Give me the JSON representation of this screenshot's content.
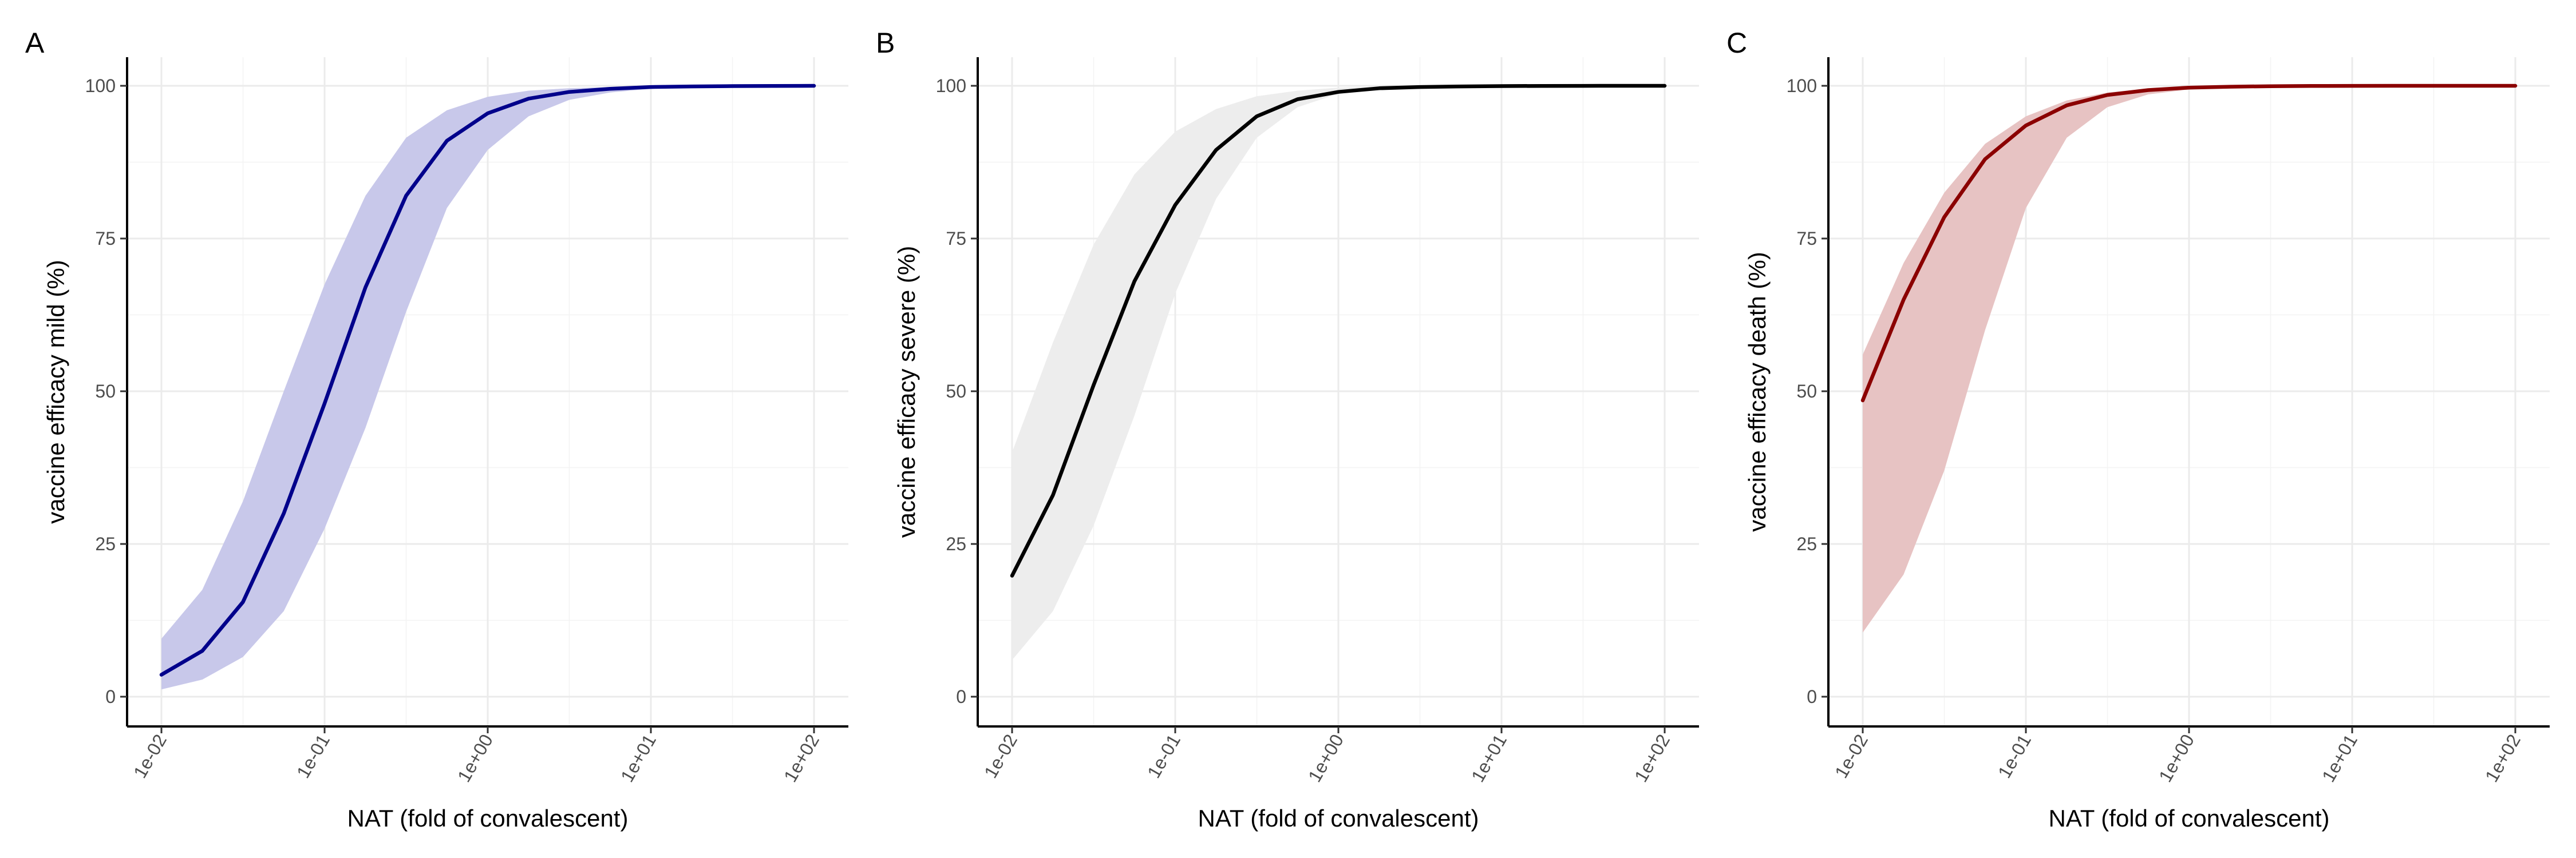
{
  "chart_data": [
    {
      "type": "line",
      "tag": "A",
      "xlabel": "NAT (fold of convalescent)",
      "ylabel": "vaccine efficacy mild (%)",
      "x_scale": "log10",
      "xlim": [
        0.01,
        100
      ],
      "ylim": [
        0,
        100
      ],
      "x_ticks": [
        "1e-02",
        "1e-01",
        "1e+00",
        "1e+01",
        "1e+02"
      ],
      "y_ticks": [
        "0",
        "25",
        "50",
        "75",
        "100"
      ],
      "grid": true,
      "line_color": "#00008b",
      "band_color": "#c8c8ea",
      "series": [
        {
          "x": [
            0.01,
            0.0178,
            0.0316,
            0.0562,
            0.1,
            0.178,
            0.316,
            0.562,
            1,
            1.78,
            3.16,
            5.62,
            10,
            17.8,
            31.6,
            56.2,
            100
          ],
          "y": [
            3.6,
            7.5,
            15.5,
            30,
            48,
            67,
            82,
            91,
            95.5,
            97.9,
            99,
            99.5,
            99.8,
            99.9,
            99.95,
            99.98,
            100
          ],
          "lower": [
            1.2,
            2.8,
            6.5,
            14,
            27.5,
            44,
            63,
            80,
            89.5,
            95,
            97.7,
            98.9,
            99.5,
            99.8,
            99.9,
            99.95,
            100
          ],
          "upper": [
            9.5,
            17.5,
            32,
            50,
            67.5,
            82,
            91.5,
            96,
            98.2,
            99.2,
            99.6,
            99.8,
            99.9,
            99.95,
            99.98,
            99.99,
            100
          ]
        }
      ]
    },
    {
      "type": "line",
      "tag": "B",
      "xlabel": "NAT  (fold of convalescent)",
      "ylabel": "vaccine efficacy severe (%)",
      "x_scale": "log10",
      "xlim": [
        0.01,
        100
      ],
      "ylim": [
        0,
        100
      ],
      "x_ticks": [
        "1e-02",
        "1e-01",
        "1e+00",
        "1e+01",
        "1e+02"
      ],
      "y_ticks": [
        "0",
        "25",
        "50",
        "75",
        "100"
      ],
      "grid": true,
      "line_color": "#000000",
      "band_color": "#ededed",
      "series": [
        {
          "x": [
            0.01,
            0.0178,
            0.0316,
            0.0562,
            0.1,
            0.178,
            0.316,
            0.562,
            1,
            1.78,
            3.16,
            5.62,
            10,
            17.8,
            31.6,
            56.2,
            100
          ],
          "y": [
            19.8,
            33,
            51,
            68,
            80.5,
            89.5,
            95,
            97.8,
            99,
            99.6,
            99.8,
            99.9,
            99.95,
            99.98,
            99.99,
            100,
            100
          ],
          "lower": [
            6,
            14,
            28,
            46,
            66,
            81.5,
            91.5,
            96.5,
            98.7,
            99.5,
            99.8,
            99.9,
            99.95,
            99.98,
            99.99,
            100,
            100
          ],
          "upper": [
            40,
            58,
            74,
            85.5,
            92.5,
            96.2,
            98.3,
            99.2,
            99.7,
            99.85,
            99.92,
            99.96,
            99.98,
            99.99,
            100,
            100,
            100
          ]
        }
      ]
    },
    {
      "type": "line",
      "tag": "C",
      "xlabel": "NAT  (fold of convalescent)",
      "ylabel": "vaccine efficacy death (%)",
      "x_scale": "log10",
      "xlim": [
        0.01,
        100
      ],
      "ylim": [
        0,
        100
      ],
      "x_ticks": [
        "1e-02",
        "1e-01",
        "1e+00",
        "1e+01",
        "1e+02"
      ],
      "y_ticks": [
        "0",
        "25",
        "50",
        "75",
        "100"
      ],
      "grid": true,
      "line_color": "#8b0000",
      "band_color": "#e7c3c3",
      "series": [
        {
          "x": [
            0.01,
            0.0178,
            0.0316,
            0.0562,
            0.1,
            0.178,
            0.316,
            0.562,
            1,
            1.78,
            3.16,
            5.62,
            10,
            17.8,
            31.6,
            56.2,
            100
          ],
          "y": [
            48.5,
            65,
            78.5,
            88,
            93.5,
            96.8,
            98.5,
            99.3,
            99.7,
            99.85,
            99.93,
            99.97,
            99.99,
            100,
            100,
            100,
            100
          ],
          "lower": [
            10.5,
            20,
            37,
            60,
            80,
            91.5,
            96.5,
            98.6,
            99.4,
            99.75,
            99.9,
            99.95,
            99.98,
            99.99,
            100,
            100,
            100
          ],
          "upper": [
            56,
            71,
            82.5,
            90.5,
            95,
            97.6,
            98.9,
            99.5,
            99.8,
            99.9,
            99.95,
            99.98,
            99.99,
            100,
            100,
            100,
            100
          ]
        }
      ]
    }
  ]
}
